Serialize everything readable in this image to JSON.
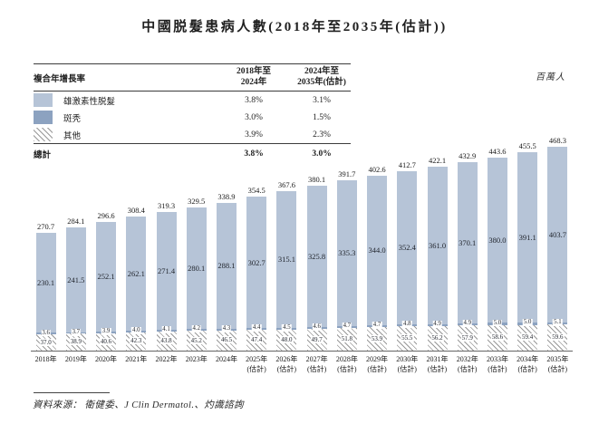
{
  "title": "中國脱髮患病人數(2018年至2035年(估計))",
  "unit_label": "百萬人",
  "cagr_table": {
    "header": {
      "label": "複合年增長率",
      "col1": "2018年至\n2024年",
      "col2": "2024年至\n2035年(估計)"
    },
    "rows": [
      {
        "label": "雄激素性脱髮",
        "swatch": "light",
        "col1": "3.8%",
        "col2": "3.1%"
      },
      {
        "label": "斑秃",
        "swatch": "dark",
        "col1": "3.0%",
        "col2": "1.5%"
      },
      {
        "label": "其他",
        "swatch": "hatch",
        "col1": "3.9%",
        "col2": "2.3%"
      }
    ],
    "total": {
      "label": "總計",
      "col1": "3.8%",
      "col2": "3.0%"
    }
  },
  "colors": {
    "light_blue": "#b6c4d7",
    "dark_blue": "#8ca2c0",
    "hatch_line": "#999999",
    "text": "#1f1f1f"
  },
  "footer": {
    "source": "資料來源： 衛健委、J Clin Dermatol.、灼識諮詢"
  },
  "chart_data": {
    "type": "bar",
    "stacked": true,
    "title": "中國脱髮患病人數(2018年至2035年(估計))",
    "ylabel": "百萬人",
    "ylim": [
      0,
      500
    ],
    "grid": false,
    "legend_position": "top-left-table",
    "categories": [
      "2018年",
      "2019年",
      "2020年",
      "2021年",
      "2022年",
      "2023年",
      "2024年",
      "2025年",
      "2026年",
      "2027年",
      "2028年",
      "2029年",
      "2030年",
      "2031年",
      "2032年",
      "2033年",
      "2034年",
      "2035年"
    ],
    "estimate_from_index": 7,
    "estimate_suffix": "(估計)",
    "series": [
      {
        "name": "雄激素性脱髮",
        "values": [
          230.1,
          241.5,
          252.1,
          262.1,
          271.4,
          280.1,
          288.1,
          302.7,
          315.1,
          325.8,
          335.3,
          344.0,
          352.4,
          361.0,
          370.1,
          380.0,
          391.1,
          403.7
        ]
      },
      {
        "name": "斑秃",
        "values": [
          3.6,
          3.7,
          3.9,
          4.0,
          4.1,
          4.2,
          4.3,
          4.4,
          4.5,
          4.6,
          4.7,
          4.7,
          4.8,
          4.9,
          4.9,
          5.0,
          5.0,
          5.1
        ]
      },
      {
        "name": "其他",
        "values": [
          37.0,
          38.9,
          40.6,
          42.3,
          43.8,
          45.2,
          46.5,
          47.4,
          48.0,
          49.7,
          51.8,
          53.9,
          55.5,
          56.2,
          57.9,
          58.6,
          59.4,
          59.6
        ]
      }
    ],
    "totals": [
      270.7,
      284.1,
      296.6,
      308.4,
      319.3,
      329.5,
      338.9,
      354.5,
      367.6,
      380.1,
      391.7,
      402.6,
      412.7,
      422.1,
      432.9,
      443.6,
      455.5,
      468.3
    ]
  }
}
